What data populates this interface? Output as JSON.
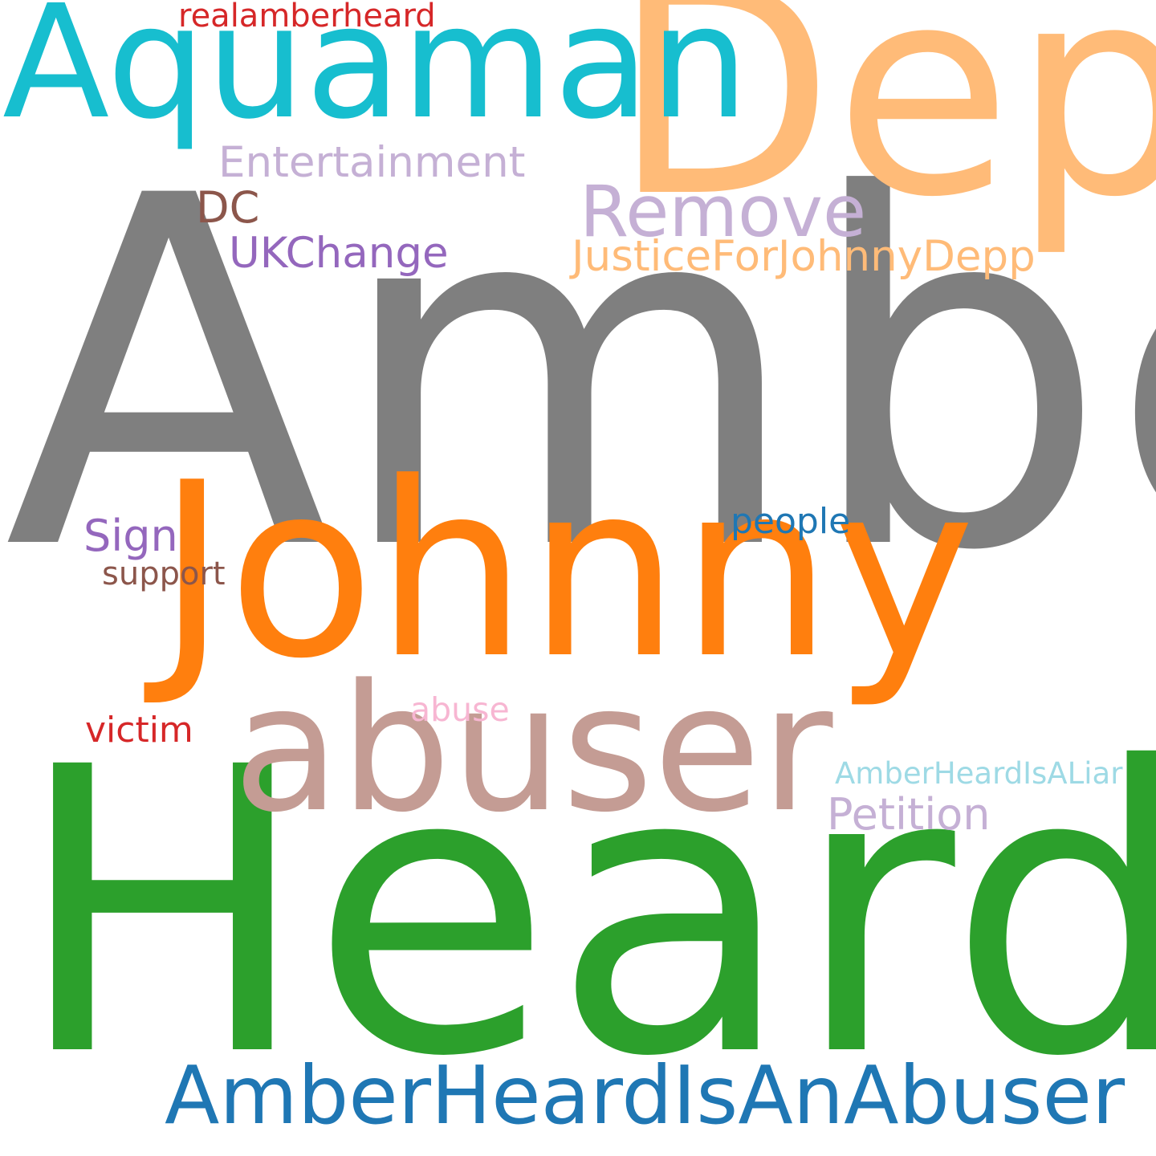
{
  "words": {
    "amber": {
      "text": "Amber",
      "color": "#7f7f7f"
    },
    "heard": {
      "text": "Heard",
      "color": "#2ca02c"
    },
    "johnny": {
      "text": "Johnny",
      "color": "#ff7f0e"
    },
    "depp": {
      "text": "Depp",
      "color": "#ffbb78"
    },
    "aquaman": {
      "text": "Aquaman",
      "color": "#17becf"
    },
    "abuser": {
      "text": "abuser",
      "color": "#c49c94"
    },
    "amberheardisanabuser": {
      "text": "AmberHeardIsAnAbuser",
      "color": "#1f77b4"
    },
    "remove": {
      "text": "Remove",
      "color": "#c5b0d5"
    },
    "justicefor": {
      "text": "JusticeForJohnnyDepp",
      "color": "#ffbb78"
    },
    "entertainment": {
      "text": "Entertainment",
      "color": "#c5b0d5"
    },
    "realamberheard": {
      "text": "realamberheard",
      "color": "#d62728"
    },
    "dc": {
      "text": "DC",
      "color": "#8c564b"
    },
    "ukchange": {
      "text": "UKChange",
      "color": "#9467bd"
    },
    "sign": {
      "text": "Sign",
      "color": "#9467bd"
    },
    "support": {
      "text": "support",
      "color": "#8c564b"
    },
    "people": {
      "text": "people",
      "color": "#1f77b4"
    },
    "abuse": {
      "text": "abuse",
      "color": "#f7b6d2"
    },
    "victim": {
      "text": "victim",
      "color": "#d62728"
    },
    "amberheardisaliar": {
      "text": "AmberHeardIsALiar",
      "color": "#9edae5"
    },
    "petition": {
      "text": "Petition",
      "color": "#c5b0d5"
    }
  }
}
